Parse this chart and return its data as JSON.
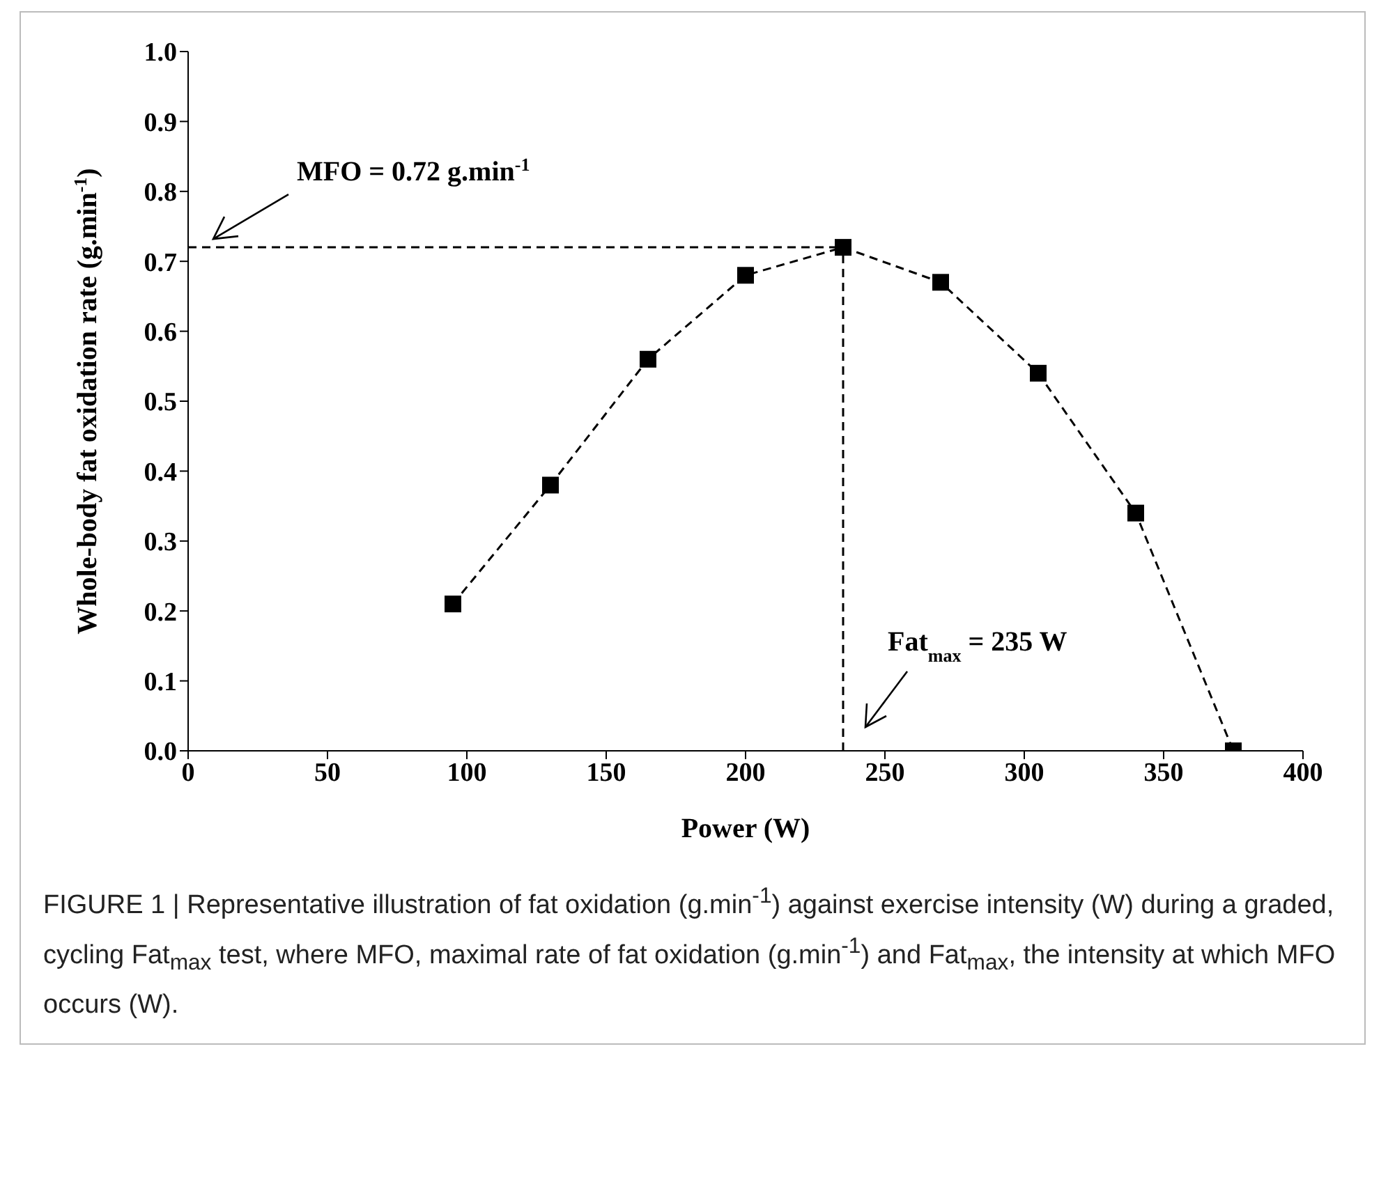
{
  "chart_data": {
    "type": "line",
    "xlabel": "Power (W)",
    "ylabel": "Whole-body fat oxidation rate (g.min$^{-1}$)",
    "x": [
      95,
      130,
      165,
      200,
      235,
      270,
      305,
      340,
      375
    ],
    "series": [
      {
        "color": "#000000",
        "values": [
          0.21,
          0.38,
          0.56,
          0.68,
          0.72,
          0.67,
          0.54,
          0.34,
          0.0
        ]
      }
    ],
    "xlim": [
      0,
      400
    ],
    "xticks": [
      0,
      50,
      100,
      150,
      200,
      250,
      300,
      350,
      400
    ],
    "ylim": [
      0,
      1
    ],
    "yticks": [
      {
        "value": 0,
        "label": "0.0"
      },
      {
        "value": 0.1,
        "label": "0.1"
      },
      {
        "value": 0.2,
        "label": "0.2"
      },
      {
        "value": 0.3,
        "label": "0.3"
      },
      {
        "value": 0.4,
        "label": "0.4"
      },
      {
        "value": 0.5,
        "label": "0.5"
      },
      {
        "value": 0.6,
        "label": "0.6"
      },
      {
        "value": 0.7,
        "label": "0.7"
      },
      {
        "value": 0.8,
        "label": "0.8"
      },
      {
        "value": 0.9,
        "label": "0.9"
      },
      {
        "value": 1,
        "label": "1.0"
      }
    ],
    "ref_lines": [
      {
        "axis": "y",
        "value": 0.72,
        "label": "MFO = 0.72 g.min$^{-1}$",
        "color": "#000000",
        "line_style": "dashed"
      },
      {
        "axis": "x",
        "value": 235,
        "label": "Fat$_{max}$ = 235 W",
        "color": "#000000",
        "line_style": "dashed"
      }
    ],
    "annotations": [
      "FIGURE 1 | Representative illustration of fat oxidation (g.min$^{-1}$) against exercise intensity (W) during a graded, cycling Fat$_{max}$ test, where MFO, maximal rate of fat oxidation (g.min$^{-1}$) and Fat$_{max}$, the intensity at which MFO occurs (W)."
    ],
    "grid": false,
    "legend": false,
    "marker": "square",
    "line_style": "dashed"
  }
}
